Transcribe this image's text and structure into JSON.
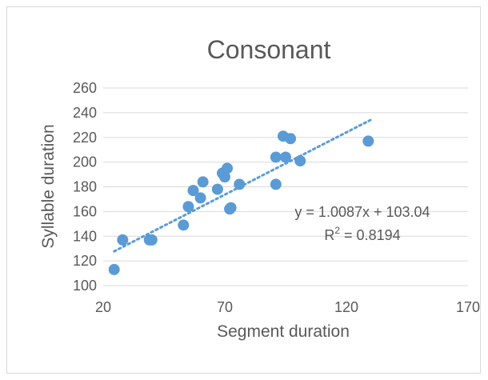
{
  "chart_data": {
    "type": "scatter",
    "title": "Consonant",
    "xlabel": "Segment duration",
    "ylabel": "Syllable duration",
    "xlim": [
      20,
      170
    ],
    "ylim": [
      100,
      260
    ],
    "xticks": [
      "20",
      "70",
      "120",
      "170"
    ],
    "yticks": [
      "100",
      "120",
      "140",
      "160",
      "180",
      "200",
      "220",
      "240",
      "260"
    ],
    "grid": "horizontal",
    "points": {
      "x": [
        24.5,
        28,
        39,
        40,
        53,
        55,
        57,
        60,
        61,
        67,
        69,
        70,
        71,
        72,
        72.5,
        76,
        91,
        91,
        94,
        95,
        97,
        101,
        129
      ],
      "y": [
        113,
        137,
        137,
        137,
        149,
        164,
        177,
        171,
        184,
        178,
        191,
        188,
        195,
        162,
        163,
        182,
        182,
        204,
        221,
        204,
        219,
        201,
        217
      ]
    },
    "trendline": {
      "type": "linear",
      "slope": 1.0087,
      "intercept": 103.04,
      "x_range": [
        24.5,
        130
      ],
      "equation_label": "y = 1.0087x + 103.04",
      "r2_prefix": "R",
      "r2_sup": "2",
      "r2_value": " = 0.8194"
    },
    "colors": {
      "marker": "#5b9bd5",
      "trend": "#5b9bd5",
      "grid": "#d9d9d9",
      "text": "#595959"
    }
  }
}
